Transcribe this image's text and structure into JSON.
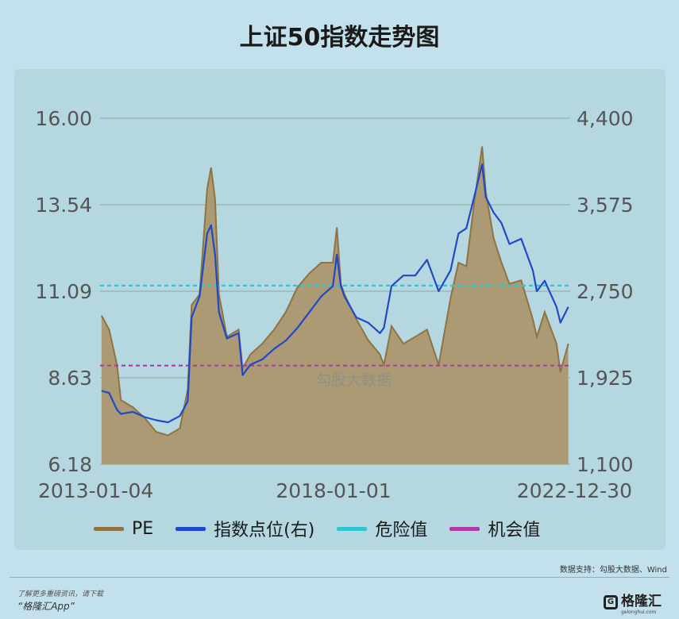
{
  "title": "上证50指数走势图",
  "legend": [
    {
      "label": "PE",
      "color": "#8f7340"
    },
    {
      "label": "指数点位(右)",
      "color": "#1f49c8"
    },
    {
      "label": "危险值",
      "color": "#2ec5d0"
    },
    {
      "label": "机会值",
      "color": "#b03aa3"
    }
  ],
  "watermark": "勾股大数据",
  "source": "数据支持：勾股大数据、Wind",
  "footer": {
    "note": "了解更多重磅资讯，请下载",
    "app": "“格隆汇App”",
    "brand": "格隆汇",
    "brand_sub": "gelonghui.com"
  },
  "chart_data": {
    "type": "area",
    "x_ticks": [
      "2013-01-04",
      "2018-01-01",
      "2022-12-30"
    ],
    "x_range": [
      "2013-01-04",
      "2022-12-30"
    ],
    "y_left": {
      "ticks": [
        "16.00",
        "13.54",
        "11.09",
        "8.63",
        "6.18"
      ],
      "range": [
        6.18,
        16.0
      ]
    },
    "y_right": {
      "ticks": [
        "4,400",
        "3,575",
        "2,750",
        "1,925",
        "1,100"
      ],
      "range": [
        1100,
        4400
      ]
    },
    "grid": true,
    "legend_position": "bottom",
    "thresholds": [
      {
        "name": "危险值",
        "value": 11.25,
        "axis": "left",
        "style": "dashed"
      },
      {
        "name": "机会值",
        "value": 8.98,
        "axis": "left",
        "style": "dashed"
      }
    ],
    "series": [
      {
        "name": "PE",
        "axis": "left",
        "type": "area",
        "x": [
          "2013-01",
          "2013-03",
          "2013-05",
          "2013-06",
          "2013-09",
          "2013-12",
          "2014-03",
          "2014-06",
          "2014-09",
          "2014-11",
          "2014-12",
          "2015-02",
          "2015-04",
          "2015-05",
          "2015-06",
          "2015-07",
          "2015-09",
          "2015-12",
          "2016-01",
          "2016-03",
          "2016-06",
          "2016-09",
          "2016-12",
          "2017-03",
          "2017-06",
          "2017-09",
          "2017-12",
          "2018-01",
          "2018-02",
          "2018-03",
          "2018-06",
          "2018-09",
          "2018-12",
          "2019-01",
          "2019-03",
          "2019-06",
          "2019-09",
          "2019-12",
          "2020-03",
          "2020-06",
          "2020-08",
          "2020-10",
          "2020-12",
          "2021-02",
          "2021-03",
          "2021-05",
          "2021-07",
          "2021-09",
          "2021-12",
          "2022-03",
          "2022-04",
          "2022-06",
          "2022-09",
          "2022-10",
          "2022-12"
        ],
        "values": [
          10.4,
          10.0,
          9.0,
          8.0,
          7.8,
          7.5,
          7.1,
          7.0,
          7.2,
          8.3,
          10.7,
          11.0,
          14.0,
          14.6,
          13.7,
          11.0,
          9.8,
          10.0,
          8.9,
          9.3,
          9.6,
          10.0,
          10.5,
          11.2,
          11.6,
          11.9,
          11.9,
          12.9,
          11.3,
          11.0,
          10.3,
          9.7,
          9.3,
          9.0,
          10.1,
          9.6,
          9.8,
          10.0,
          9.0,
          10.9,
          11.9,
          11.8,
          13.6,
          15.2,
          13.9,
          12.6,
          11.9,
          11.3,
          11.4,
          10.3,
          9.8,
          10.5,
          9.6,
          8.8,
          9.6
        ]
      },
      {
        "name": "指数点位(右)",
        "axis": "right",
        "type": "line",
        "x": [
          "2013-01",
          "2013-03",
          "2013-05",
          "2013-06",
          "2013-09",
          "2013-12",
          "2014-03",
          "2014-06",
          "2014-09",
          "2014-11",
          "2014-12",
          "2015-02",
          "2015-04",
          "2015-05",
          "2015-06",
          "2015-07",
          "2015-09",
          "2015-12",
          "2016-01",
          "2016-03",
          "2016-06",
          "2016-09",
          "2016-12",
          "2017-03",
          "2017-06",
          "2017-09",
          "2017-12",
          "2018-01",
          "2018-02",
          "2018-03",
          "2018-06",
          "2018-09",
          "2018-12",
          "2019-01",
          "2019-03",
          "2019-06",
          "2019-09",
          "2019-12",
          "2020-03",
          "2020-06",
          "2020-08",
          "2020-10",
          "2020-12",
          "2021-02",
          "2021-03",
          "2021-05",
          "2021-07",
          "2021-09",
          "2021-12",
          "2022-03",
          "2022-04",
          "2022-06",
          "2022-09",
          "2022-10",
          "2022-12"
        ],
        "values": [
          1800,
          1780,
          1620,
          1580,
          1600,
          1550,
          1520,
          1500,
          1560,
          1700,
          2500,
          2700,
          3300,
          3380,
          3100,
          2550,
          2300,
          2350,
          1950,
          2050,
          2100,
          2200,
          2280,
          2400,
          2550,
          2700,
          2800,
          3100,
          2800,
          2700,
          2500,
          2450,
          2350,
          2400,
          2800,
          2900,
          2900,
          3050,
          2750,
          2950,
          3300,
          3350,
          3650,
          3960,
          3650,
          3500,
          3400,
          3200,
          3250,
          2950,
          2750,
          2850,
          2600,
          2450,
          2600
        ]
      }
    ]
  }
}
